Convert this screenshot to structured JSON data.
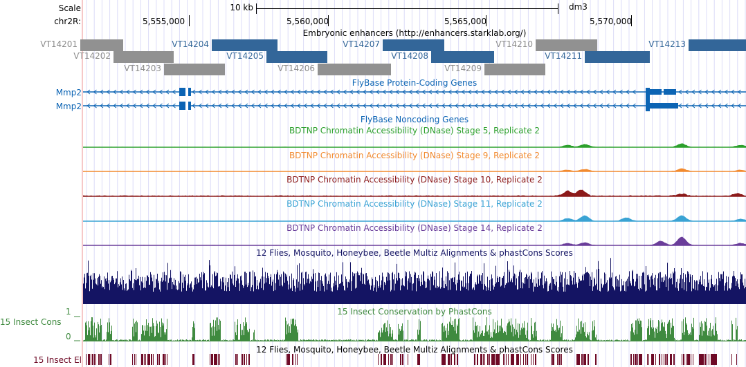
{
  "ruler": {
    "scale_label": "Scale",
    "scale_bar": "10 kb",
    "assembly": "dm3",
    "chrom_label": "chr2R:",
    "ticks": [
      "5,555,000",
      "5,560,000",
      "5,565,000",
      "5,570,000"
    ]
  },
  "enhancers": {
    "title": "Embryonic enhancers (http://enhancers.starklab.org/)",
    "items": [
      {
        "name": "VT14201",
        "color": "gray"
      },
      {
        "name": "VT14202",
        "color": "gray"
      },
      {
        "name": "VT14203",
        "color": "gray"
      },
      {
        "name": "VT14204",
        "color": "blue"
      },
      {
        "name": "VT14205",
        "color": "blue"
      },
      {
        "name": "VT14206",
        "color": "gray"
      },
      {
        "name": "VT14207",
        "color": "blue"
      },
      {
        "name": "VT14208",
        "color": "blue"
      },
      {
        "name": "VT14209",
        "color": "gray"
      },
      {
        "name": "VT14210",
        "color": "gray"
      },
      {
        "name": "VT14211",
        "color": "blue"
      },
      {
        "name": "VT14213",
        "color": "blue"
      }
    ]
  },
  "genes": {
    "title": "FlyBase Protein-Coding Genes",
    "rows": [
      "Mmp2",
      "Mmp2"
    ],
    "color": "#0c64b4"
  },
  "noncoding": {
    "title": "FlyBase Noncoding Genes"
  },
  "dnase": [
    {
      "title": "BDTNP Chromatin Accessibility (DNase) Stage 5, Replicate 2",
      "color": "#2ca02c"
    },
    {
      "title": "BDTNP Chromatin Accessibility (DNase) Stage 9, Replicate 2",
      "color": "#f28a2e"
    },
    {
      "title": "BDTNP Chromatin Accessibility (DNase) Stage 10, Replicate 2",
      "color": "#8c1a1a"
    },
    {
      "title": "BDTNP Chromatin Accessibility (DNase) Stage 11, Replicate 2",
      "color": "#3aa3d4"
    },
    {
      "title": "BDTNP Chromatin Accessibility (DNase) Stage 14, Replicate 2",
      "color": "#6a3d9a"
    }
  ],
  "multiz": {
    "title": "12 Flies, Mosquito, Honeybee, Beetle Multiz Alignments & phastCons Scores",
    "color": "#141463"
  },
  "phastcons": {
    "title": "15 Insect Conservation by PhastCons",
    "label": "15 Insect Cons",
    "ymax": "1",
    "ymin": "0",
    "color": "#3f8a3f"
  },
  "elements": {
    "title": "12 Flies, Mosquito, Honeybee, Beetle Multiz Alignments & phastCons Scores",
    "label": "15 Insect El",
    "color": "#6e0a26"
  }
}
